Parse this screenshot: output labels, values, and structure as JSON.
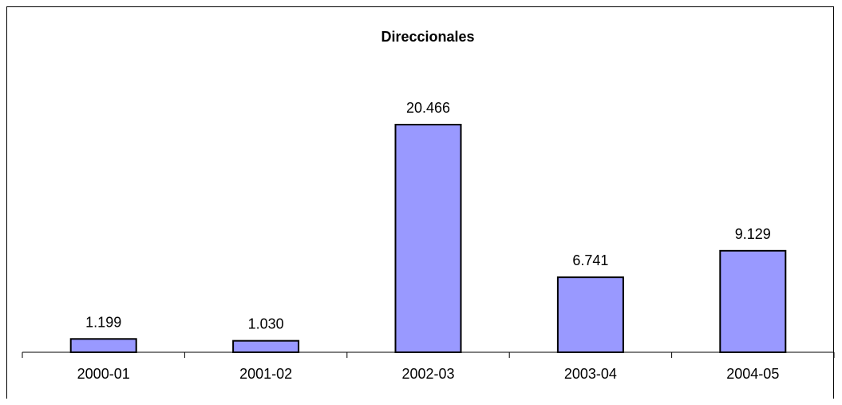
{
  "chart_data": {
    "type": "bar",
    "title": "Direccionales",
    "categories": [
      "2000-01",
      "2001-02",
      "2002-03",
      "2003-04",
      "2004-05"
    ],
    "values": [
      1199,
      1030,
      20466,
      6741,
      9129
    ],
    "data_labels": [
      "1.199",
      "1.030",
      "20.466",
      "6.741",
      "9.129"
    ],
    "xlabel": "",
    "ylabel": "",
    "ylim": [
      0,
      25000
    ],
    "grid": false,
    "legend": "none",
    "bar_color": "#9999ff",
    "bar_edge_color": "#000000"
  }
}
